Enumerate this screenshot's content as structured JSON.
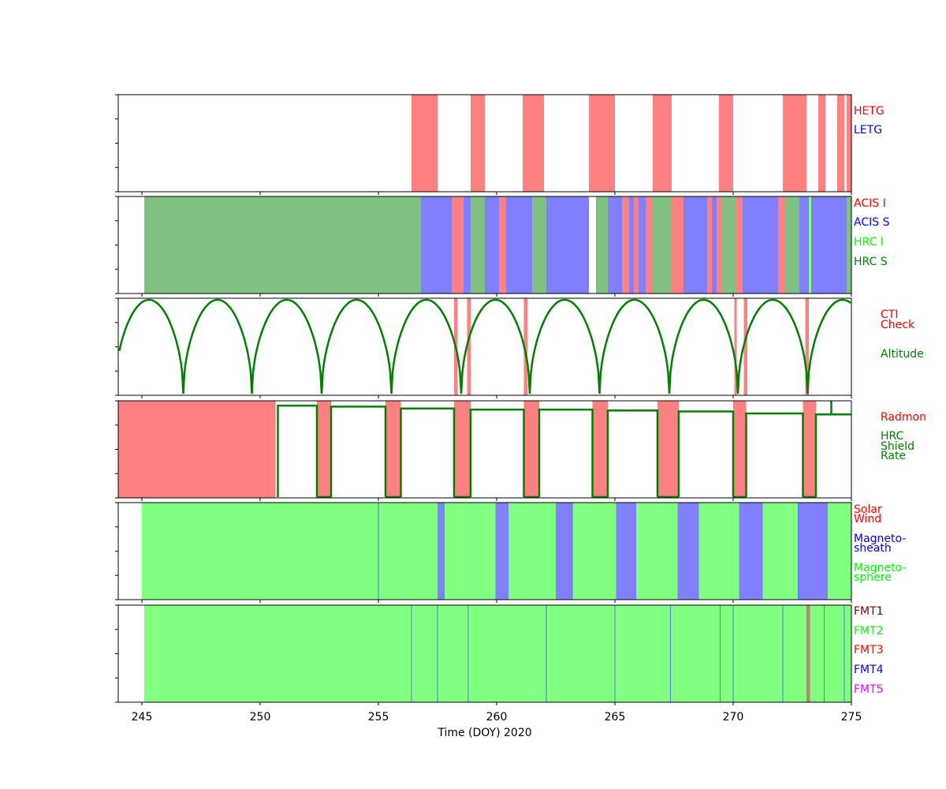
{
  "chart_data": {
    "type": "timeline",
    "xlim": [
      244,
      275
    ],
    "x_ticks": [
      245,
      250,
      255,
      260,
      265,
      270,
      275
    ],
    "xlabel": "Time (DOY) 2020",
    "grid": false,
    "panels": [
      {
        "name": "gratings",
        "legend": [
          {
            "label": "HETG",
            "color": "#ff0000"
          },
          {
            "label": "LETG",
            "color": "#0000ff"
          }
        ],
        "bands": [
          {
            "start": 256.4,
            "end": 257.5,
            "color": "#ff8080"
          },
          {
            "start": 258.9,
            "end": 259.5,
            "color": "#ff8080"
          },
          {
            "start": 261.1,
            "end": 262.0,
            "color": "#ff8080"
          },
          {
            "start": 263.9,
            "end": 265.0,
            "color": "#ff8080"
          },
          {
            "start": 266.6,
            "end": 267.4,
            "color": "#ff8080"
          },
          {
            "start": 269.4,
            "end": 270.0,
            "color": "#ff8080"
          },
          {
            "start": 272.1,
            "end": 273.1,
            "color": "#ff8080"
          },
          {
            "start": 273.6,
            "end": 273.9,
            "color": "#ff8080"
          },
          {
            "start": 274.4,
            "end": 274.7,
            "color": "#ff8080"
          },
          {
            "start": 274.8,
            "end": 275.0,
            "color": "#ff8080"
          }
        ]
      },
      {
        "name": "instruments",
        "legend": [
          {
            "label": "ACIS I",
            "color": "#ff0000"
          },
          {
            "label": "ACIS S",
            "color": "#0000ff"
          },
          {
            "label": "HRC I",
            "color": "#00ff00"
          },
          {
            "label": "HRC S",
            "color": "#008000"
          }
        ],
        "bands": [
          {
            "start": 245.1,
            "end": 256.8,
            "color": "#80c080"
          },
          {
            "start": 256.8,
            "end": 258.1,
            "color": "#8080ff"
          },
          {
            "start": 258.1,
            "end": 258.6,
            "color": "#ff8080"
          },
          {
            "start": 258.6,
            "end": 258.9,
            "color": "#8080ff"
          },
          {
            "start": 258.9,
            "end": 259.5,
            "color": "#80c080"
          },
          {
            "start": 259.5,
            "end": 260.1,
            "color": "#8080ff"
          },
          {
            "start": 260.1,
            "end": 260.4,
            "color": "#ff8080"
          },
          {
            "start": 260.4,
            "end": 261.5,
            "color": "#8080ff"
          },
          {
            "start": 261.5,
            "end": 262.1,
            "color": "#80c080"
          },
          {
            "start": 262.1,
            "end": 263.9,
            "color": "#8080ff"
          },
          {
            "start": 264.2,
            "end": 264.7,
            "color": "#80c080"
          },
          {
            "start": 264.7,
            "end": 265.3,
            "color": "#8080ff"
          },
          {
            "start": 265.3,
            "end": 265.6,
            "color": "#ff8080"
          },
          {
            "start": 265.6,
            "end": 265.8,
            "color": "#8080ff"
          },
          {
            "start": 265.8,
            "end": 266.0,
            "color": "#ff8080"
          },
          {
            "start": 266.0,
            "end": 266.3,
            "color": "#8080ff"
          },
          {
            "start": 266.3,
            "end": 266.6,
            "color": "#ff8080"
          },
          {
            "start": 266.6,
            "end": 267.4,
            "color": "#80c080"
          },
          {
            "start": 267.4,
            "end": 267.9,
            "color": "#ff8080"
          },
          {
            "start": 267.9,
            "end": 268.9,
            "color": "#8080ff"
          },
          {
            "start": 268.9,
            "end": 269.1,
            "color": "#ff8080"
          },
          {
            "start": 269.1,
            "end": 269.3,
            "color": "#8080ff"
          },
          {
            "start": 269.3,
            "end": 269.5,
            "color": "#ff8080"
          },
          {
            "start": 269.5,
            "end": 270.1,
            "color": "#80c080"
          },
          {
            "start": 270.1,
            "end": 270.4,
            "color": "#ff8080"
          },
          {
            "start": 270.4,
            "end": 271.9,
            "color": "#8080ff"
          },
          {
            "start": 271.9,
            "end": 272.2,
            "color": "#ff8080"
          },
          {
            "start": 272.2,
            "end": 272.8,
            "color": "#80c080"
          },
          {
            "start": 272.8,
            "end": 273.2,
            "color": "#8080ff"
          },
          {
            "start": 273.2,
            "end": 273.3,
            "color": "#80ff80"
          },
          {
            "start": 273.3,
            "end": 274.8,
            "color": "#8080ff"
          },
          {
            "start": 274.8,
            "end": 275.0,
            "color": "#80c080"
          }
        ]
      },
      {
        "name": "altitude",
        "legend": [
          {
            "label": "CTI",
            "color": "#ff0000"
          },
          {
            "label": "Check",
            "color": "#ff0000"
          },
          {
            "label": "Altitude",
            "color": "#008000"
          }
        ],
        "bands": [
          {
            "start": 258.2,
            "end": 258.35,
            "color": "#ff8080"
          },
          {
            "start": 258.75,
            "end": 258.9,
            "color": "#ff8080"
          },
          {
            "start": 261.15,
            "end": 261.3,
            "color": "#ff8080"
          },
          {
            "start": 270.05,
            "end": 270.15,
            "color": "#ff8080"
          },
          {
            "start": 270.45,
            "end": 270.6,
            "color": "#ff8080"
          },
          {
            "start": 273.05,
            "end": 273.2,
            "color": "#ff8080"
          }
        ],
        "curve": {
          "kind": "orbit-arches",
          "minima": [
            246.75,
            249.65,
            252.6,
            255.55,
            258.5,
            261.4,
            264.35,
            267.3,
            270.2,
            273.15,
            276.1
          ],
          "color": "#008000"
        }
      },
      {
        "name": "radmon",
        "legend": [
          {
            "label": "Radmon",
            "color": "#ff0000"
          },
          {
            "label": "HRC",
            "color": "#008000"
          },
          {
            "label": "Shield",
            "color": "#008000"
          },
          {
            "label": "Rate",
            "color": "#008000"
          }
        ],
        "bands": [
          {
            "start": 244.0,
            "end": 250.65,
            "color": "#ff8080"
          },
          {
            "start": 252.4,
            "end": 253.0,
            "color": "#ff8080"
          },
          {
            "start": 255.3,
            "end": 255.95,
            "color": "#ff8080"
          },
          {
            "start": 258.2,
            "end": 258.9,
            "color": "#ff8080"
          },
          {
            "start": 261.15,
            "end": 261.8,
            "color": "#ff8080"
          },
          {
            "start": 264.05,
            "end": 264.7,
            "color": "#ff8080"
          },
          {
            "start": 266.8,
            "end": 267.7,
            "color": "#ff8080"
          },
          {
            "start": 270.0,
            "end": 270.55,
            "color": "#ff8080"
          },
          {
            "start": 272.95,
            "end": 273.5,
            "color": "#ff8080"
          }
        ],
        "rate_segments": [
          {
            "start": 250.75,
            "end": 252.4,
            "level": 0.95
          },
          {
            "start": 253.0,
            "end": 255.3,
            "level": 0.94
          },
          {
            "start": 255.95,
            "end": 258.2,
            "level": 0.92
          },
          {
            "start": 258.9,
            "end": 261.15,
            "level": 0.91
          },
          {
            "start": 261.8,
            "end": 264.05,
            "level": 0.91
          },
          {
            "start": 264.7,
            "end": 266.8,
            "level": 0.9
          },
          {
            "start": 267.7,
            "end": 270.0,
            "level": 0.89
          },
          {
            "start": 270.55,
            "end": 272.95,
            "level": 0.87
          },
          {
            "start": 273.5,
            "end": 275.0,
            "level": 0.86
          }
        ],
        "line_color": "#008000"
      },
      {
        "name": "environment",
        "legend": [
          {
            "label": "Solar",
            "color": "#ff0000"
          },
          {
            "label": "Wind",
            "color": "#ff0000"
          },
          {
            "label": "Magneto-",
            "color": "#0000ff"
          },
          {
            "label": "sheath",
            "color": "#0000ff"
          },
          {
            "label": "Magneto-",
            "color": "#00ff00"
          },
          {
            "label": "sphere",
            "color": "#00ff00"
          }
        ],
        "bands": [
          {
            "start": 245.0,
            "end": 257.5,
            "color": "#80ff80"
          },
          {
            "start": 257.5,
            "end": 257.8,
            "color": "#8080ff"
          },
          {
            "start": 257.8,
            "end": 259.95,
            "color": "#80ff80"
          },
          {
            "start": 259.95,
            "end": 260.5,
            "color": "#8080ff"
          },
          {
            "start": 260.5,
            "end": 262.5,
            "color": "#80ff80"
          },
          {
            "start": 262.5,
            "end": 263.2,
            "color": "#8080ff"
          },
          {
            "start": 263.2,
            "end": 265.05,
            "color": "#80ff80"
          },
          {
            "start": 265.05,
            "end": 265.9,
            "color": "#8080ff"
          },
          {
            "start": 265.9,
            "end": 267.65,
            "color": "#80ff80"
          },
          {
            "start": 267.65,
            "end": 268.55,
            "color": "#8080ff"
          },
          {
            "start": 268.55,
            "end": 270.25,
            "color": "#80ff80"
          },
          {
            "start": 270.25,
            "end": 271.25,
            "color": "#8080ff"
          },
          {
            "start": 271.25,
            "end": 272.75,
            "color": "#80ff80"
          },
          {
            "start": 272.75,
            "end": 274.0,
            "color": "#8080ff"
          },
          {
            "start": 274.0,
            "end": 275.0,
            "color": "#80ff80"
          }
        ],
        "separators": [
          255.0,
          263.2,
          272.75
        ]
      },
      {
        "name": "format",
        "legend": [
          {
            "label": "FMT1",
            "color": "#800000"
          },
          {
            "label": "FMT2",
            "color": "#00ff00"
          },
          {
            "label": "FMT3",
            "color": "#ff0000"
          },
          {
            "label": "FMT4",
            "color": "#0000ff"
          },
          {
            "label": "FMT5",
            "color": "#ff00ff"
          }
        ],
        "bands": [
          {
            "start": 245.1,
            "end": 275.0,
            "color": "#80ff80"
          },
          {
            "start": 273.1,
            "end": 273.25,
            "color": "#c08080"
          }
        ],
        "separators": [
          256.4,
          257.5,
          258.8,
          262.1,
          265.0,
          267.35,
          269.45,
          270.0,
          272.1,
          273.85,
          274.7
        ]
      }
    ]
  }
}
